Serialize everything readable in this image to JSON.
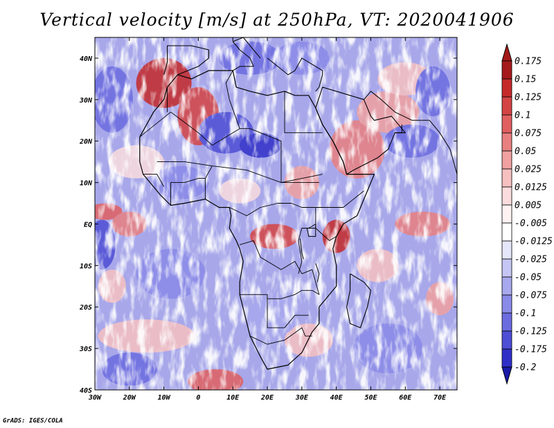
{
  "title": "Vertical velocity [m/s] at 250hPa, VT: 2020041906",
  "credit": "GrADS: IGES/COLA",
  "map": {
    "lon_range": [
      -30,
      75
    ],
    "lat_range": [
      -40,
      45
    ],
    "lon_ticks": [
      {
        "value": -30,
        "label": "30W"
      },
      {
        "value": -20,
        "label": "20W"
      },
      {
        "value": -10,
        "label": "10W"
      },
      {
        "value": 0,
        "label": "0"
      },
      {
        "value": 10,
        "label": "10E"
      },
      {
        "value": 20,
        "label": "20E"
      },
      {
        "value": 30,
        "label": "30E"
      },
      {
        "value": 40,
        "label": "40E"
      },
      {
        "value": 50,
        "label": "50E"
      },
      {
        "value": 60,
        "label": "60E"
      },
      {
        "value": 70,
        "label": "70E"
      }
    ],
    "lat_ticks": [
      {
        "value": 40,
        "label": "40N"
      },
      {
        "value": 30,
        "label": "30N"
      },
      {
        "value": 20,
        "label": "20N"
      },
      {
        "value": 10,
        "label": "10N"
      },
      {
        "value": 0,
        "label": "EQ"
      },
      {
        "value": -10,
        "label": "10S"
      },
      {
        "value": -20,
        "label": "20S"
      },
      {
        "value": -30,
        "label": "30S"
      },
      {
        "value": -40,
        "label": "40S"
      }
    ]
  },
  "colorbar": {
    "levels": [
      {
        "label": "0.175",
        "color": "#a51a1a"
      },
      {
        "label": "0.15",
        "color": "#c42a2a"
      },
      {
        "label": "0.125",
        "color": "#d44444"
      },
      {
        "label": "0.1",
        "color": "#e06060"
      },
      {
        "label": "0.075",
        "color": "#e88080"
      },
      {
        "label": "0.05",
        "color": "#f0a0a0"
      },
      {
        "label": "0.025",
        "color": "#f6c0c0"
      },
      {
        "label": "0.0125",
        "color": "#fadcdc"
      },
      {
        "label": "0.005",
        "color": "#fff2f2"
      },
      {
        "label": "-0.005",
        "color": "#ffffff"
      },
      {
        "label": "-0.0125",
        "color": "#e6e6fa"
      },
      {
        "label": "-0.025",
        "color": "#c6c6f4"
      },
      {
        "label": "-0.05",
        "color": "#a8a8ee"
      },
      {
        "label": "-0.075",
        "color": "#8a8ae8"
      },
      {
        "label": "-0.1",
        "color": "#6c6ce0"
      },
      {
        "label": "-0.125",
        "color": "#4e4ed6"
      },
      {
        "label": "-0.175",
        "color": "#3030c8"
      },
      {
        "label": "-0.2",
        "color": "#1a1aa8"
      }
    ],
    "top_color": "#a51a1a",
    "bottom_color": "#1a1aa8"
  }
}
